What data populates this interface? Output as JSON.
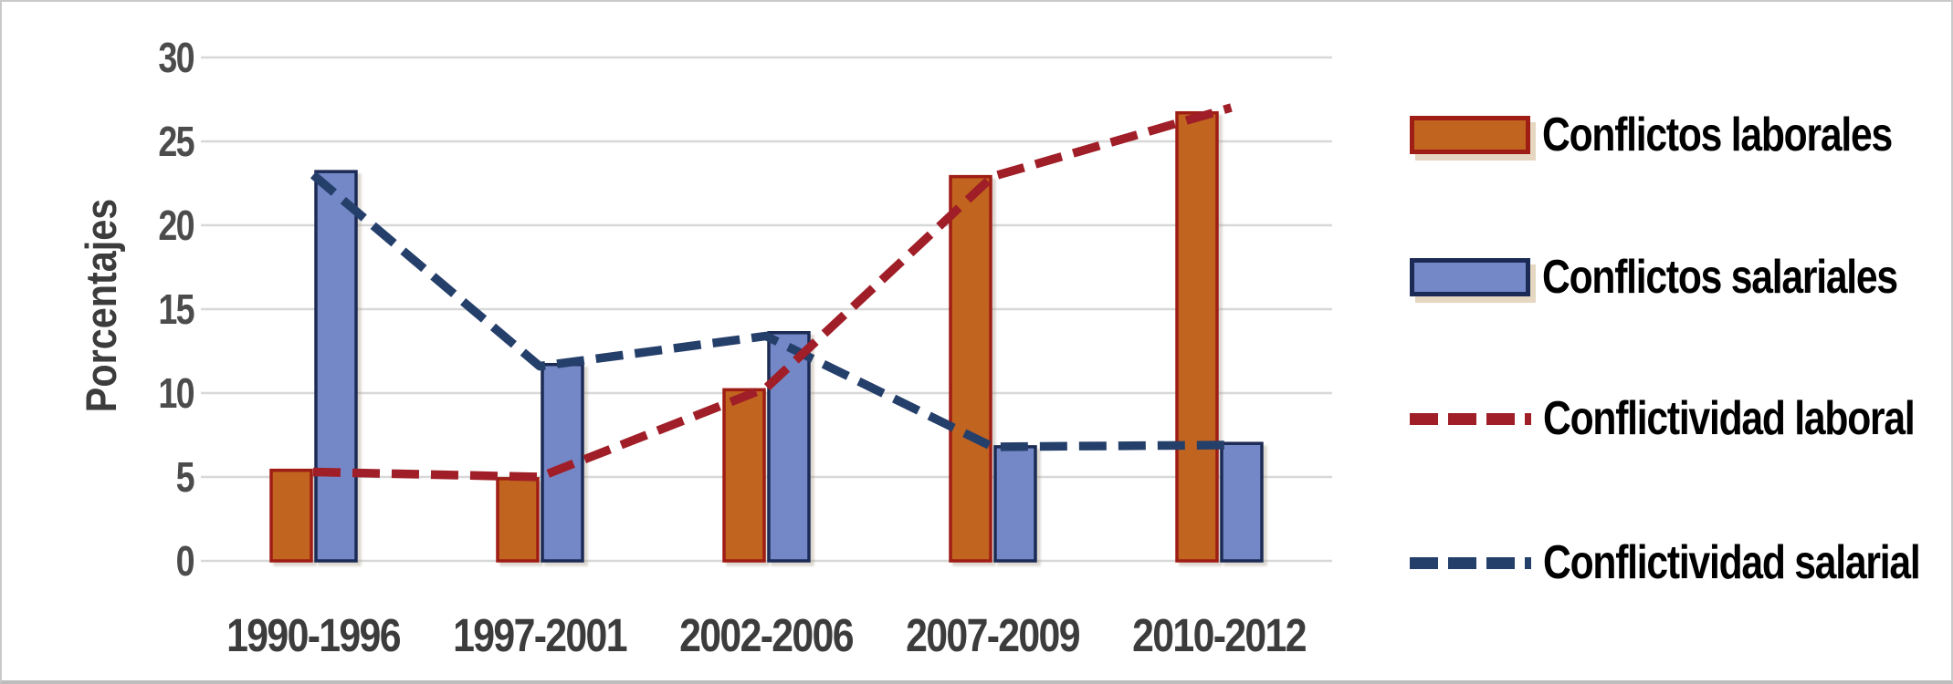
{
  "chart_data": {
    "type": "combo",
    "title": "",
    "ylabel": "Porcentajes",
    "xlabel": "",
    "categories": [
      "1990-1996",
      "1997-2001",
      "2002-2006",
      "2007-2009",
      "2010-2012"
    ],
    "y_ticks": [
      0,
      5,
      10,
      15,
      20,
      25,
      30
    ],
    "ylim": [
      0,
      30
    ],
    "grid": true,
    "legend_position": "right",
    "series": [
      {
        "name": "Conflictos laborales",
        "type": "bar",
        "color": "#c1641f",
        "border": "#9e1d15",
        "values": [
          5.4,
          4.9,
          10.2,
          22.9,
          26.7
        ]
      },
      {
        "name": "Conflictos salariales",
        "type": "bar",
        "color": "#7488c8",
        "border": "#1c2b55",
        "values": [
          23.2,
          11.7,
          13.6,
          6.8,
          7.0
        ]
      },
      {
        "name": "Conflictividad laboral",
        "type": "line",
        "style": "dashed",
        "color": "#a01e27",
        "values": [
          5.3,
          5.0,
          10.3,
          22.9,
          26.8
        ]
      },
      {
        "name": "Conflictividad salarial",
        "type": "line",
        "style": "dashed",
        "color": "#253f6b",
        "values": [
          23.0,
          11.6,
          13.4,
          6.8,
          6.9
        ]
      }
    ],
    "colors": {
      "gridline": "#d8d8d8",
      "tick_label": "#4c4c4c",
      "category_label": "#3c3c3c",
      "axis_title": "#3c3c3c",
      "legend_text": "#000000"
    }
  }
}
